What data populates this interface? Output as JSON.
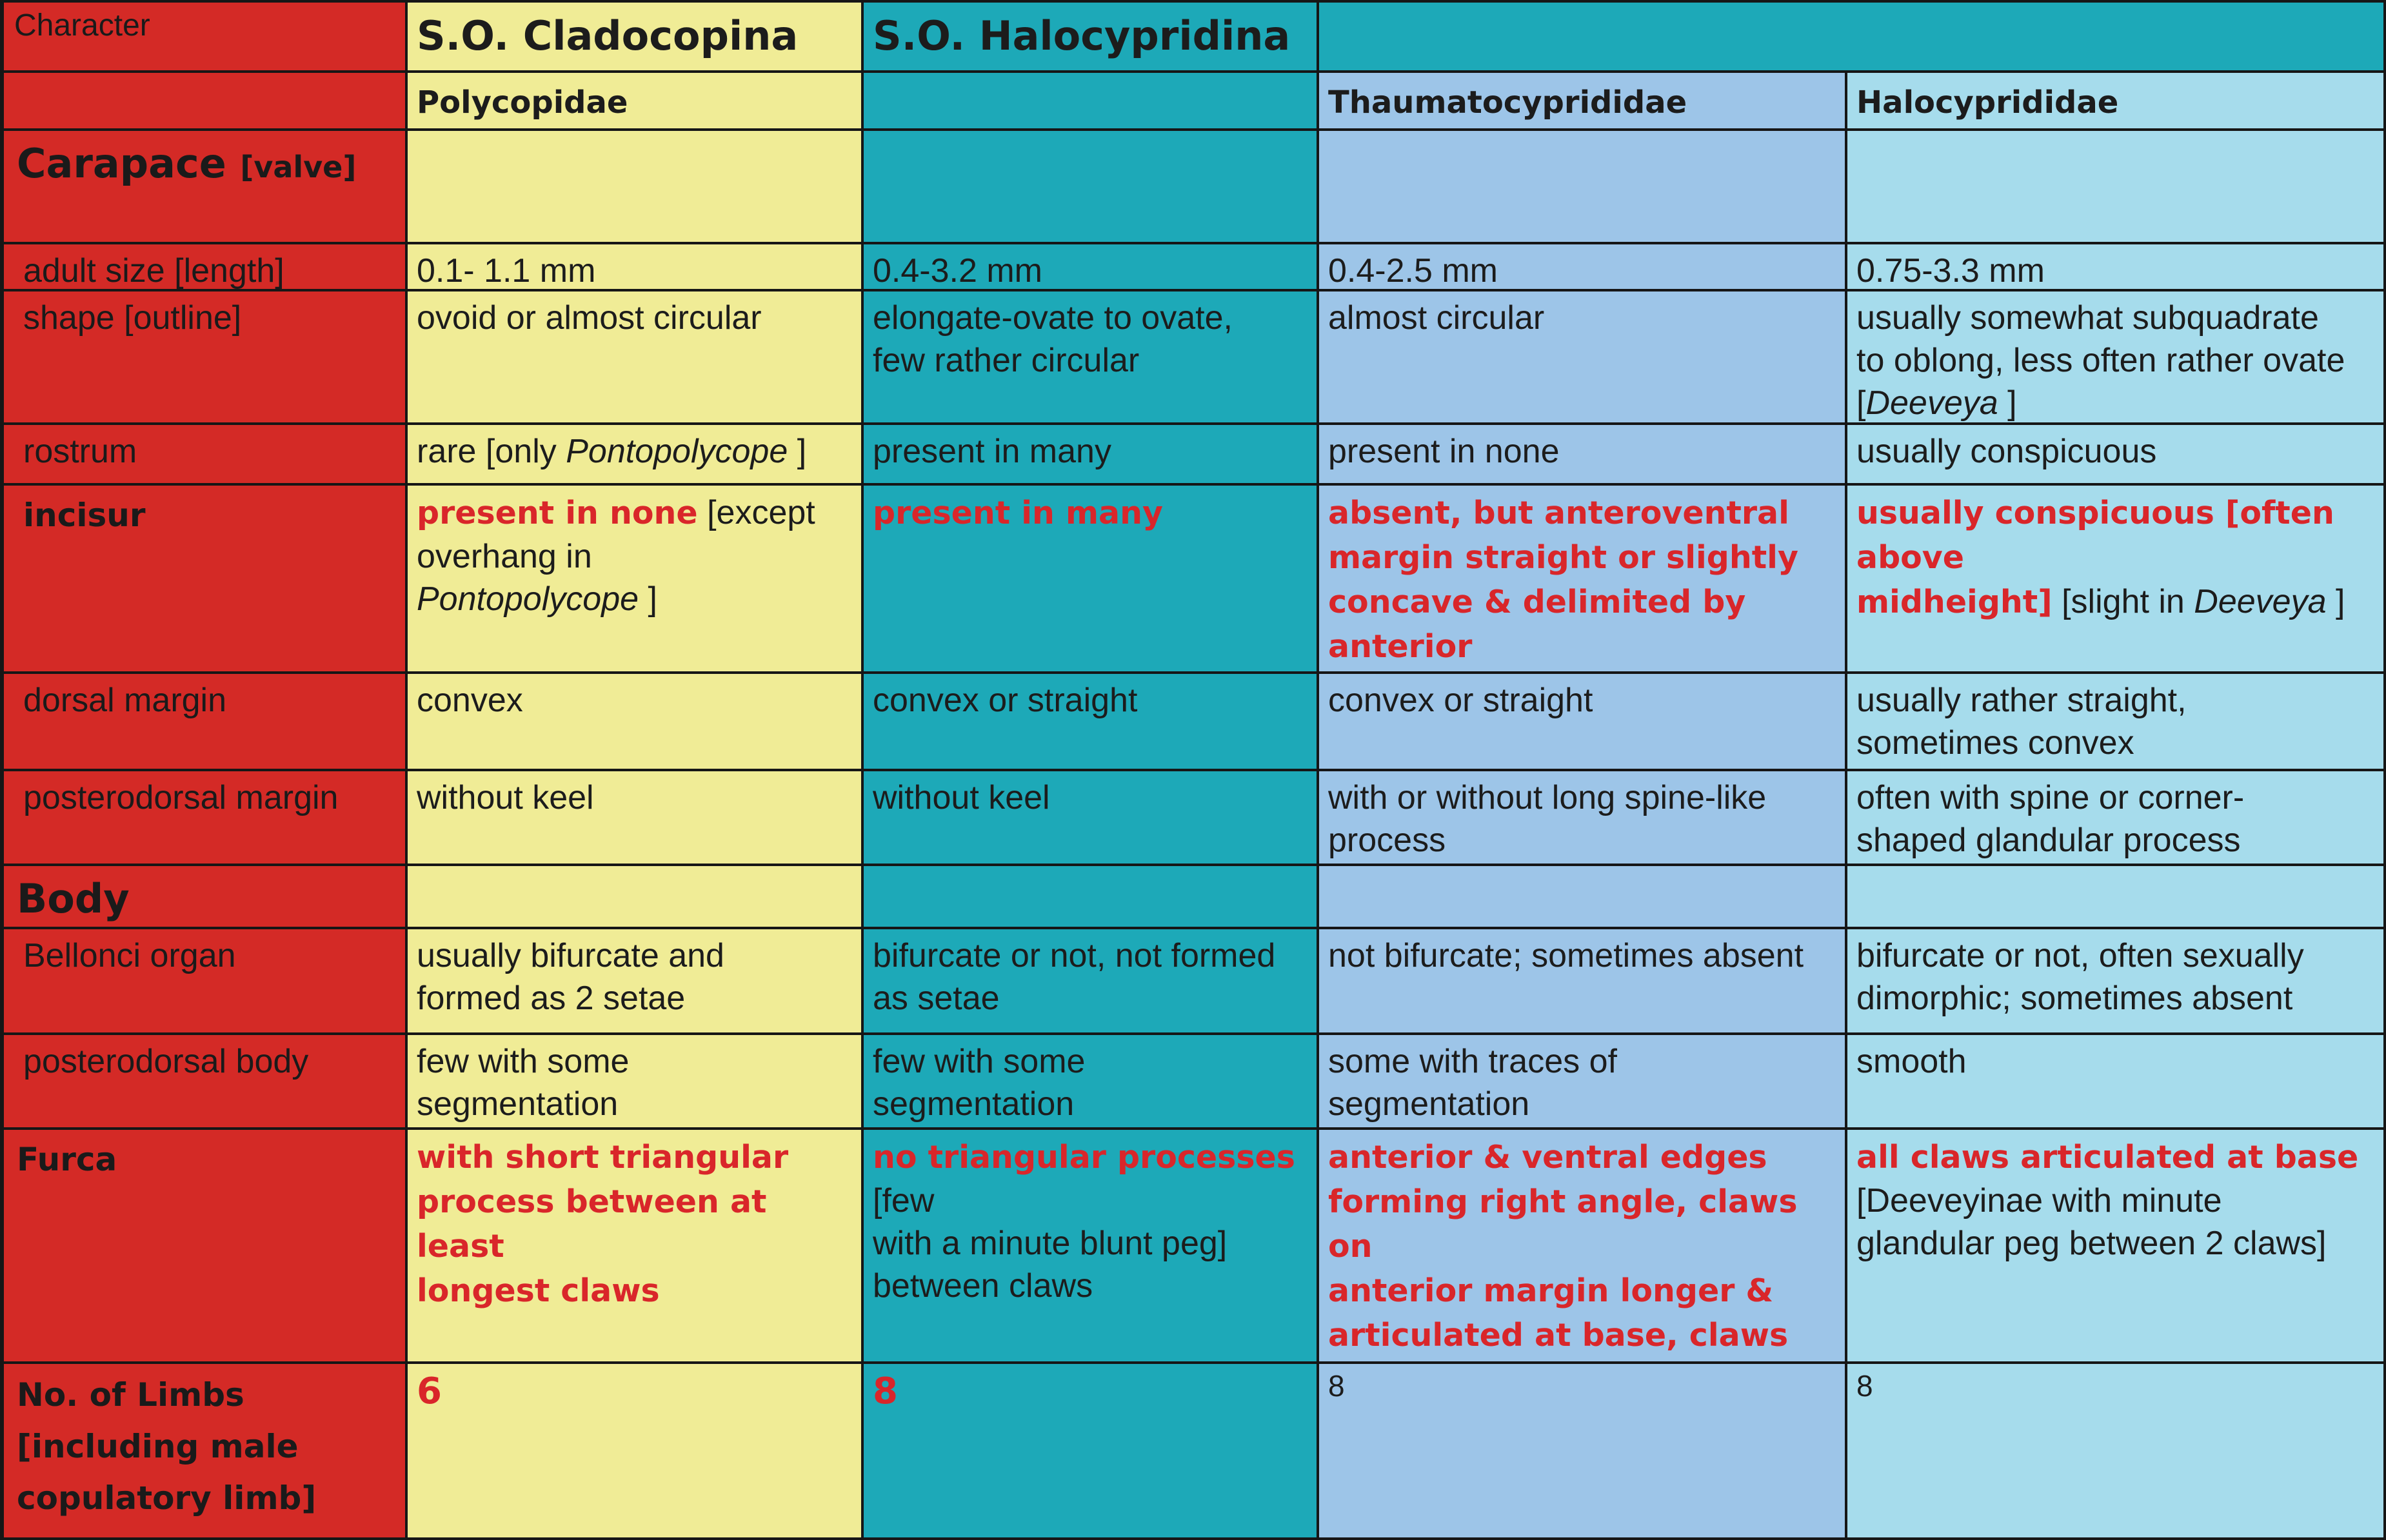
{
  "header": {
    "character": "Character",
    "order_1": "S.O. Cladocopina",
    "order_2": "S.O. Halocypridina",
    "family_1": "Polycopidae",
    "family_3": "Thaumatocyprididae",
    "family_4": "Halocyprididae"
  },
  "carapace": {
    "title": "Carapace",
    "title_sub": "[valve]"
  },
  "adult_size": {
    "label": "adult size [length]",
    "v1": "0.1- 1.1 mm",
    "v2": "0.4-3.2 mm",
    "v3": "0.4-2.5 mm",
    "v4": "0.75-3.3 mm"
  },
  "shape": {
    "label": "shape [outline]",
    "v1": "ovoid or almost circular",
    "v2": "elongate-ovate to ovate,\nfew rather circular",
    "v3": "almost circular",
    "v4_a": "usually somewhat subquadrate\nto oblong, less often rather ovate\n[",
    "v4_genus": "Deeveya",
    "v4_b": " ]"
  },
  "rostrum": {
    "label": "rostrum",
    "v1_a": "rare [only ",
    "v1_genus": "Pontopolycope",
    "v1_b": " ]",
    "v2": "present in many",
    "v3": "present in none",
    "v4": "usually conspicuous"
  },
  "incisur": {
    "label": "incisur",
    "v1_red": "present in none",
    "v1_a": " [except\noverhang in\n",
    "v1_genus": "Pontopolycope",
    "v1_b": " ]",
    "v2_red": "present in many",
    "v3_red": "absent, but anteroventral\nmargin straight or slightly\nconcave & delimited by anterior\n& anteroventral processes",
    "v4_red": "usually conspicuous [often above\nmidheight]",
    "v4_a": " [slight in ",
    "v4_genus": "Deeveya",
    "v4_b": " ]"
  },
  "dorsal_margin": {
    "label": "dorsal margin",
    "v1": "convex",
    "v2": "convex or straight",
    "v3": "convex or straight",
    "v4": "usually rather straight,\nsometimes convex"
  },
  "posterodorsal_margin": {
    "label": "posterodorsal margin",
    "v1": "without keel",
    "v2": "without keel",
    "v3": "with or without long spine-like\nprocess",
    "v4": "often with spine or corner-\nshaped glandular process"
  },
  "body": {
    "title": "Body"
  },
  "bellonci": {
    "label": "Bellonci organ",
    "v1": "usually bifurcate and\nformed as 2 setae",
    "v2": "bifurcate or not, not formed\nas setae",
    "v3": "not bifurcate; sometimes absent",
    "v4": "bifurcate or not, often sexually\ndimorphic; sometimes absent"
  },
  "posterodorsal_body": {
    "label": "posterodorsal body",
    "v1": "few with some\nsegmentation",
    "v2": "few with some\nsegmentation",
    "v3": "some with traces of\nsegmentation",
    "v4": "smooth"
  },
  "furca": {
    "label": "Furca",
    "v1_red": "with short triangular\nprocess between at least\nlongest claws",
    "v2_red": "no triangular processes",
    "v2_a": " [few\nwith a minute blunt peg]\nbetween claws",
    "v3_red": "anterior & ventral edges\nforming right angle, claws on\nanterior margin longer &\narticulated at base, claws on\nventral margin unarticulated",
    "v4_red": "all claws articulated at base",
    "v4_a": "\n[Deeveyinae with minute\nglandular peg between 2 claws]"
  },
  "limbs": {
    "label": "No. of Limbs\n[including male\ncopulatory limb]",
    "v1": "6",
    "v2": "8",
    "v3": "8",
    "v4": "8"
  },
  "colors": {
    "character_column": "#d42a26",
    "cladocopina_column": "#f0ec96",
    "halocypridina_column": "#1da9b8",
    "thaumatocyprididae_column": "#9dc5e8",
    "halocyprididae_column": "#a6dcec",
    "highlight_text": "#d9262a"
  }
}
